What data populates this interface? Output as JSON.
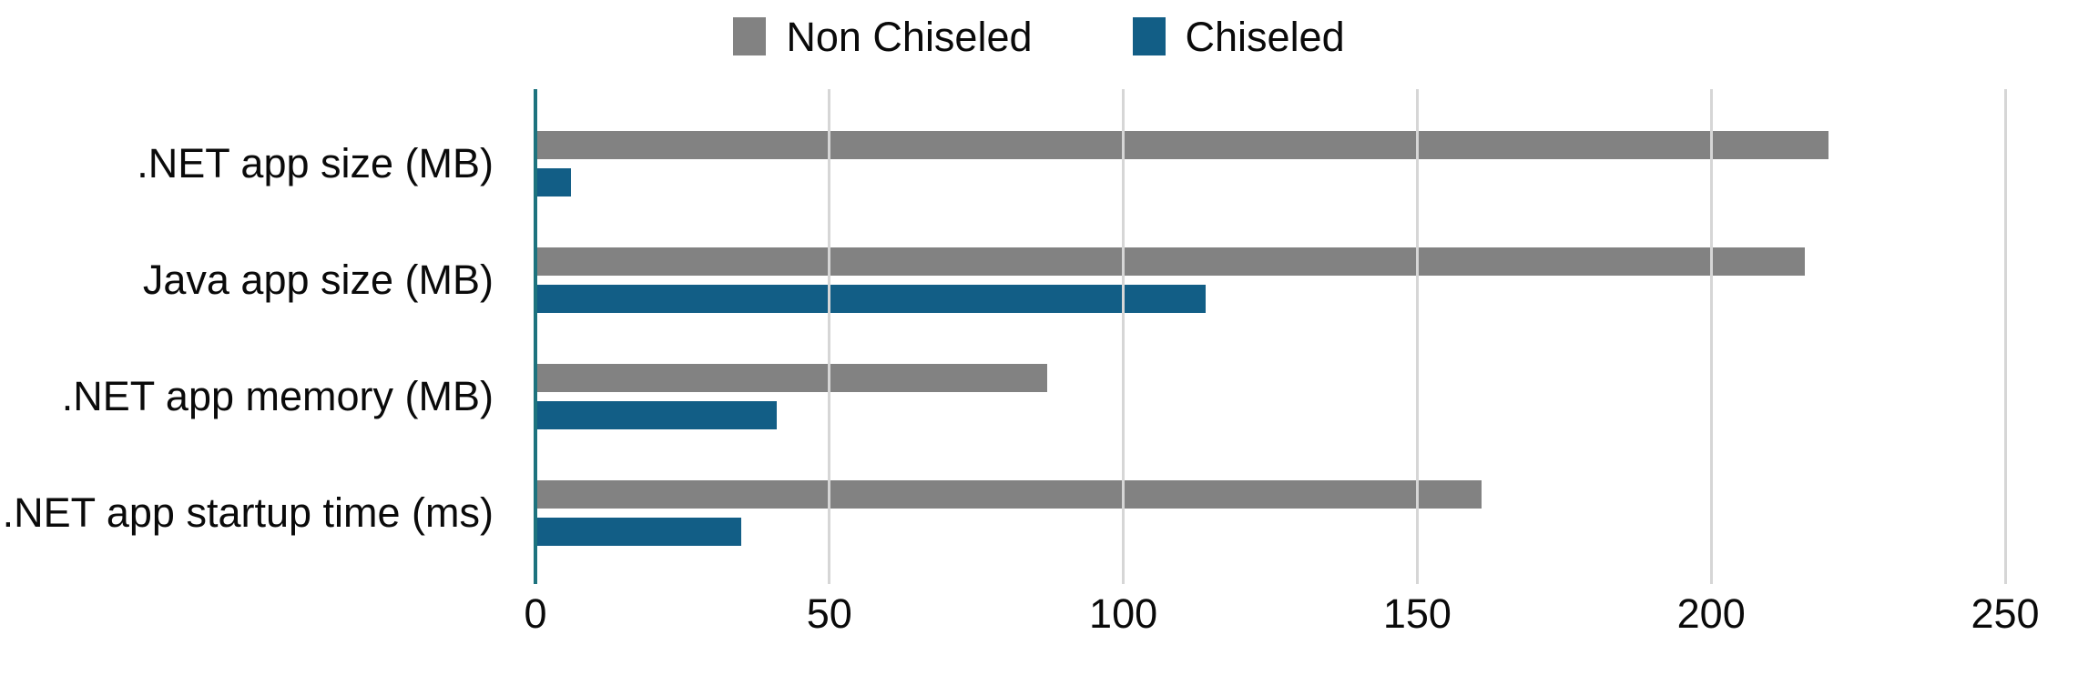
{
  "chart_data": {
    "type": "bar",
    "orientation": "horizontal",
    "title": "",
    "xlabel": "",
    "ylabel": "",
    "categories": [
      ".NET app size (MB)",
      "Java app size (MB)",
      ".NET app memory (MB)",
      ".NET app startup time (ms)"
    ],
    "series": [
      {
        "name": "Non Chiseled",
        "color": "#828282",
        "values": [
          220,
          216,
          87,
          161
        ]
      },
      {
        "name": "Chiseled",
        "color": "#125e86",
        "values": [
          6,
          114,
          41,
          35
        ]
      }
    ],
    "x_ticks": [
      0,
      50,
      100,
      150,
      200,
      250
    ],
    "xlim": [
      0,
      250
    ],
    "legend_position": "top-center",
    "grid": "vertical-gridlines-over-bars",
    "colors": {
      "axis_line": "#1d737e",
      "gridline": "#d6d6d6",
      "text": "#0a0a0a",
      "background": "#ffffff"
    }
  }
}
